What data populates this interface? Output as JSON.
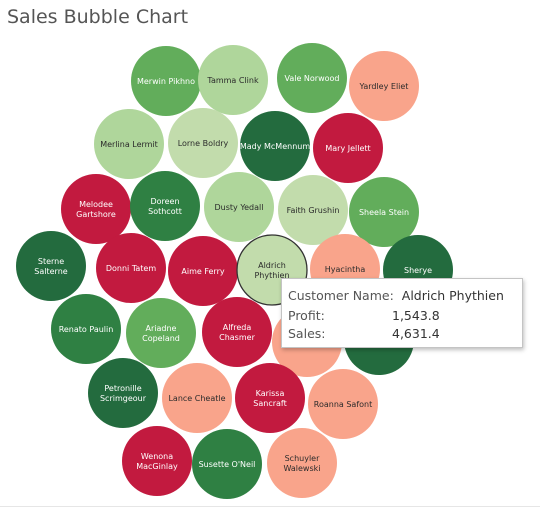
{
  "title": "Sales Bubble Chart",
  "colors": {
    "dark_green": "#236b3e",
    "green": "#2f8043",
    "mid_green": "#62ad5b",
    "light_green": "#afd69b",
    "pale_green": "#c2dcac",
    "salmon": "#f9a48b",
    "red": "#c21a3f",
    "highlight_stroke": "#333333"
  },
  "tooltip": {
    "customer_label": "Customer Name:",
    "customer_value": "Aldrich Phythien",
    "profit_label": "Profit:",
    "profit_value": "1,543.8",
    "sales_label": "Sales:",
    "sales_value": "4,631.4"
  },
  "chart_data": {
    "type": "bubble",
    "title": "Sales Bubble Chart",
    "color_encoding": "Profit",
    "size_encoding": "Sales",
    "bubbles": [
      {
        "name": "Merwin Pikhno",
        "color": "mid_green"
      },
      {
        "name": "Tamma Clink",
        "color": "light_green"
      },
      {
        "name": "Vale Norwood",
        "color": "mid_green"
      },
      {
        "name": "Yardley Eliet",
        "color": "salmon"
      },
      {
        "name": "Merlina Lermit",
        "color": "light_green"
      },
      {
        "name": "Lorne Boldry",
        "color": "pale_green"
      },
      {
        "name": "Mady McMennum",
        "color": "dark_green"
      },
      {
        "name": "Mary Jellett",
        "color": "red"
      },
      {
        "name": "Melodee Gartshore",
        "color": "red"
      },
      {
        "name": "Doreen Sothcott",
        "color": "green"
      },
      {
        "name": "Dusty Yedall",
        "color": "light_green"
      },
      {
        "name": "Faith Grushin",
        "color": "pale_green"
      },
      {
        "name": "Sheela Stein",
        "color": "mid_green"
      },
      {
        "name": "Sterne Salterne",
        "color": "dark_green"
      },
      {
        "name": "Donni Tatem",
        "color": "red"
      },
      {
        "name": "Aime Ferry",
        "color": "red"
      },
      {
        "name": "Aldrich Phythien",
        "color": "pale_green",
        "highlighted": true
      },
      {
        "name": "Hyacintha",
        "color": "salmon"
      },
      {
        "name": "Sherye",
        "color": "dark_green"
      },
      {
        "name": "Renato Paulin",
        "color": "green"
      },
      {
        "name": "Ariadne Copeland",
        "color": "mid_green"
      },
      {
        "name": "Alfreda Chasmer",
        "color": "red"
      },
      {
        "name": "",
        "color": "salmon"
      },
      {
        "name": "",
        "color": "dark_green"
      },
      {
        "name": "Petronille Scrimgeour",
        "color": "dark_green"
      },
      {
        "name": "Lance Cheatle",
        "color": "salmon"
      },
      {
        "name": "Karissa Sancraft",
        "color": "red"
      },
      {
        "name": "Roanna Safont",
        "color": "salmon"
      },
      {
        "name": "Wenona MacGinlay",
        "color": "red"
      },
      {
        "name": "Susette O'Neil",
        "color": "green"
      },
      {
        "name": "Schuyler Walewski",
        "color": "salmon"
      }
    ]
  }
}
